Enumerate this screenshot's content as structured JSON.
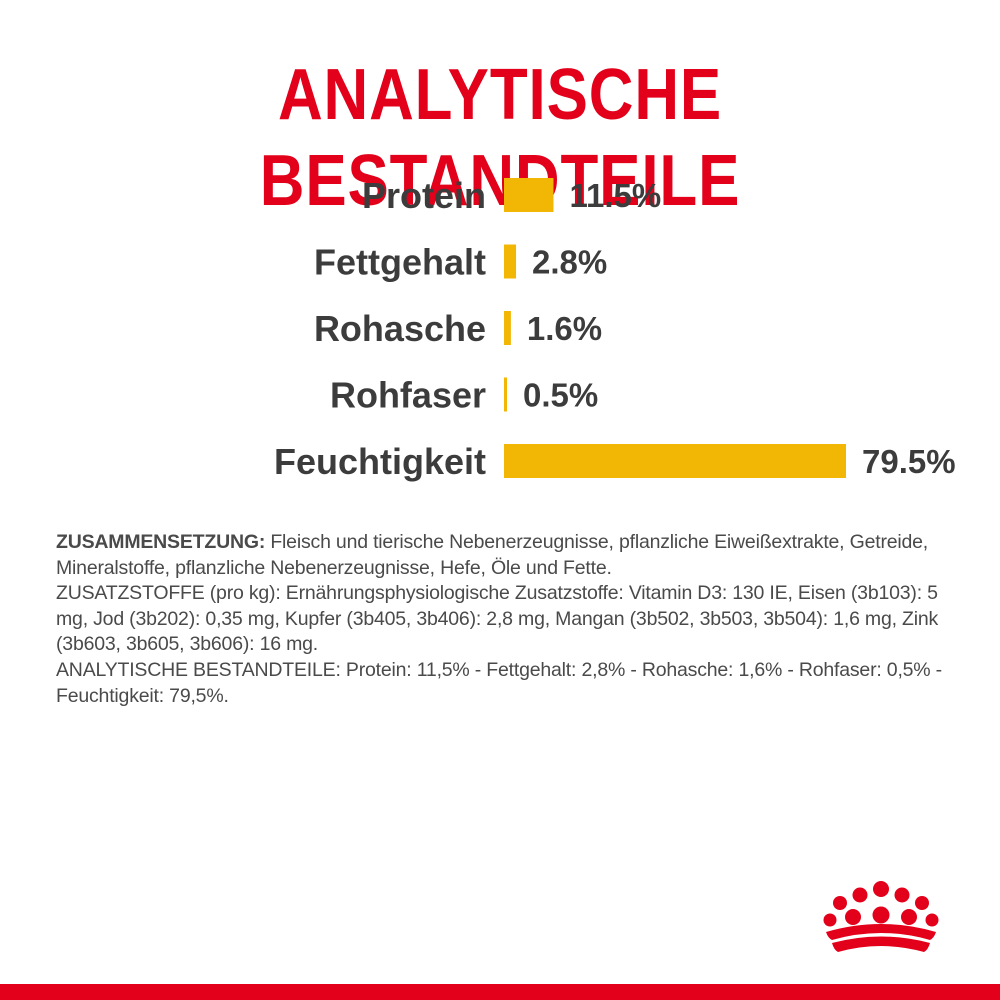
{
  "title": "ANALYTISCHE BESTANDTEILE",
  "colors": {
    "title": "#e2001a",
    "bar": "#f2b705",
    "label": "#3c3c3c",
    "body_text": "#4a4a4a",
    "brand_red": "#e2001a"
  },
  "chart_data": {
    "type": "bar",
    "orientation": "horizontal",
    "title": "",
    "xlabel": "",
    "ylabel": "",
    "xlim": [
      0,
      80
    ],
    "grid": false,
    "legend": "none",
    "categories": [
      "Protein",
      "Fettgehalt",
      "Rohasche",
      "Rohfaser",
      "Feuchtigkeit"
    ],
    "values": [
      11.5,
      2.8,
      1.6,
      0.5,
      79.5
    ],
    "value_labels": [
      "11.5%",
      "2.8%",
      "1.6%",
      "0.5%",
      "79.5%"
    ]
  },
  "composition": {
    "lead": "ZUSAMMENSETZUNG:",
    "ingredients": " Fleisch und tierische Nebenerzeugnisse, pflanzliche Eiweißextrakte, Getreide, Mineralstoffe, pflanzliche Nebenerzeugnisse, Hefe, Öle und Fette.",
    "additives": "ZUSATZSTOFFE (pro kg): Ernährungsphysiologische Zusatzstoffe: Vitamin D3: 130 IE, Eisen (3b103): 5 mg, Jod (3b202): 0,35 mg, Kupfer (3b405, 3b406): 2,8 mg, Mangan (3b502, 3b503, 3b504): 1,6 mg, Zink (3b603, 3b605, 3b606): 16 mg.",
    "analysis": "ANALYTISCHE BESTANDTEILE: Protein: 11,5% - Fettgehalt: 2,8% - Rohasche: 1,6% - Rohfaser: 0,5% - Feuchtigkeit: 79,5%."
  },
  "logo": {
    "icon": "crown-icon"
  }
}
